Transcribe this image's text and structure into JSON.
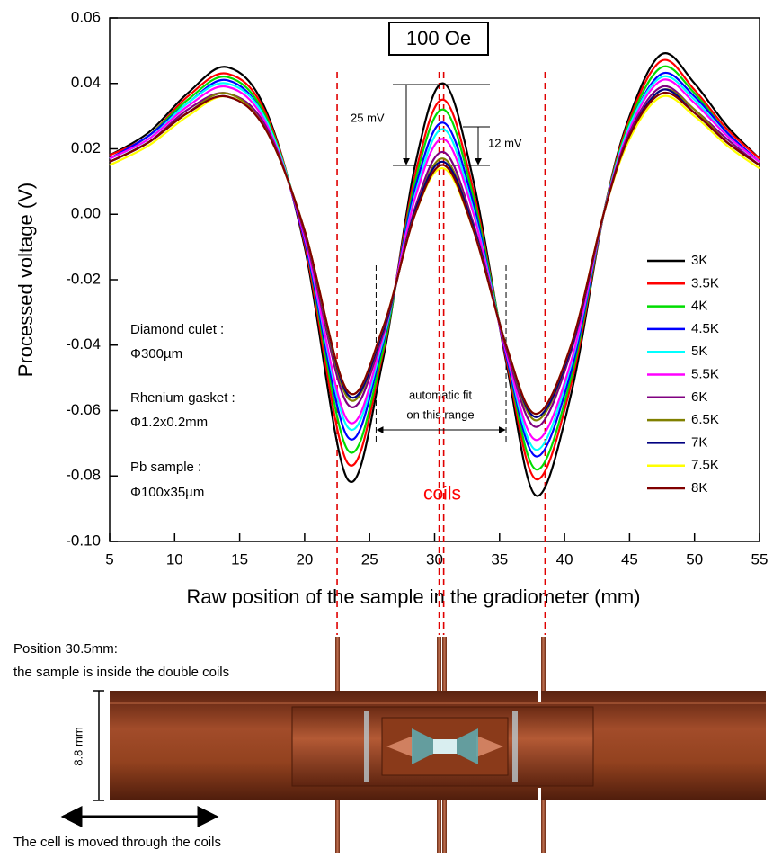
{
  "chart_data": {
    "type": "line",
    "box_label": "100 Oe",
    "x_label": "Raw position of the sample in the gradiometer (mm)",
    "y_label": "Processed voltage (V)",
    "x": [
      5,
      8,
      11,
      14,
      17,
      20,
      23.3,
      26,
      28.5,
      30.7,
      33,
      35.5,
      37.8,
      40.5,
      43,
      45,
      47.5,
      50,
      52.5,
      55
    ],
    "xlim": [
      5,
      55
    ],
    "xticks": [
      5,
      10,
      15,
      20,
      25,
      30,
      35,
      40,
      45,
      50,
      55
    ],
    "ylim": [
      -0.1,
      0.06
    ],
    "yticks": [
      {
        "value": -0.1,
        "label": "-0.10"
      },
      -0.08,
      -0.06,
      -0.04,
      -0.02,
      {
        "value": 0,
        "label": "0.00"
      },
      0.02,
      0.04,
      0.06
    ],
    "legend": "right",
    "series": [
      {
        "name": "3K",
        "color": "#000000",
        "values": [
          0.018,
          0.025,
          0.037,
          0.045,
          0.032,
          -0.01,
          -0.081,
          -0.045,
          0.015,
          0.04,
          0.01,
          -0.045,
          -0.086,
          -0.055,
          0,
          0.03,
          0.049,
          0.04,
          0.027,
          0.017
        ]
      },
      {
        "name": "3.5K",
        "color": "#ff0000",
        "values": [
          0.018,
          0.024,
          0.036,
          0.043,
          0.031,
          -0.009,
          -0.076,
          -0.043,
          0.012,
          0.035,
          0.007,
          -0.044,
          -0.081,
          -0.052,
          0,
          0.029,
          0.047,
          0.038,
          0.026,
          0.017
        ]
      },
      {
        "name": "4K",
        "color": "#00dd00",
        "values": [
          0.017,
          0.024,
          0.035,
          0.042,
          0.03,
          -0.008,
          -0.072,
          -0.042,
          0.01,
          0.032,
          0.005,
          -0.043,
          -0.078,
          -0.05,
          0,
          0.028,
          0.045,
          0.037,
          0.025,
          0.016
        ]
      },
      {
        "name": "4.5K",
        "color": "#0000ff",
        "values": [
          0.017,
          0.024,
          0.034,
          0.041,
          0.029,
          -0.008,
          -0.068,
          -0.04,
          0.008,
          0.028,
          0.003,
          -0.043,
          -0.074,
          -0.048,
          0,
          0.027,
          0.043,
          0.036,
          0.025,
          0.016
        ]
      },
      {
        "name": "5K",
        "color": "#00ffff",
        "values": [
          0.017,
          0.023,
          0.034,
          0.04,
          0.029,
          -0.007,
          -0.065,
          -0.039,
          0.006,
          0.026,
          0.001,
          -0.042,
          -0.072,
          -0.046,
          0,
          0.027,
          0.042,
          0.035,
          0.024,
          0.016
        ]
      },
      {
        "name": "5.5K",
        "color": "#ff00ff",
        "values": [
          0.017,
          0.023,
          0.033,
          0.039,
          0.028,
          -0.007,
          -0.063,
          -0.038,
          0.005,
          0.023,
          0,
          -0.042,
          -0.069,
          -0.045,
          0,
          0.026,
          0.041,
          0.034,
          0.024,
          0.016
        ]
      },
      {
        "name": "6K",
        "color": "#800080",
        "values": [
          0.016,
          0.022,
          0.032,
          0.037,
          0.027,
          -0.006,
          -0.058,
          -0.037,
          0.002,
          0.019,
          -0.003,
          -0.041,
          -0.065,
          -0.042,
          0,
          0.025,
          0.039,
          0.032,
          0.023,
          0.015
        ]
      },
      {
        "name": "6.5K",
        "color": "#808000",
        "values": [
          0.016,
          0.022,
          0.031,
          0.037,
          0.026,
          -0.005,
          -0.056,
          -0.036,
          0.001,
          0.017,
          -0.004,
          -0.04,
          -0.063,
          -0.041,
          0,
          0.024,
          0.038,
          0.032,
          0.022,
          0.015
        ]
      },
      {
        "name": "7K",
        "color": "#000080",
        "values": [
          0.016,
          0.022,
          0.031,
          0.036,
          0.026,
          -0.005,
          -0.055,
          -0.036,
          0.001,
          0.016,
          -0.004,
          -0.04,
          -0.062,
          -0.041,
          0,
          0.024,
          0.038,
          0.031,
          0.022,
          0.015
        ]
      },
      {
        "name": "7.5K",
        "color": "#ffff00",
        "values": [
          0.015,
          0.021,
          0.03,
          0.036,
          0.026,
          -0.005,
          -0.054,
          -0.035,
          0,
          0.014,
          -0.005,
          -0.04,
          -0.061,
          -0.04,
          0,
          0.023,
          0.036,
          0.03,
          0.021,
          0.014
        ]
      },
      {
        "name": "8K",
        "color": "#800000",
        "values": [
          0.016,
          0.022,
          0.031,
          0.036,
          0.026,
          -0.005,
          -0.054,
          -0.035,
          0,
          0.015,
          -0.005,
          -0.04,
          -0.061,
          -0.04,
          0,
          0.024,
          0.037,
          0.031,
          0.022,
          0.015
        ]
      }
    ],
    "coil_lines": [
      22.5,
      30.35,
      30.7,
      38.5
    ],
    "fit_range": [
      25.5,
      35.5
    ],
    "annotations": {
      "amplitude_total": "25 mV",
      "amplitude_partial": "12 mV",
      "fit_text": [
        "automatic fit",
        "on this range"
      ],
      "coils": "coils",
      "sample_info": [
        "Diamond culet :",
        "Φ300µm",
        "Rhenium gasket :",
        "Φ1.2x0.2mm",
        "Pb sample :",
        "Φ100x35µm"
      ]
    }
  },
  "diagram": {
    "caption": [
      "Position 30.5mm:",
      "the sample is inside the double coils"
    ],
    "size_label": "8.8 mm",
    "motion_label": "The cell is moved through the coils"
  }
}
